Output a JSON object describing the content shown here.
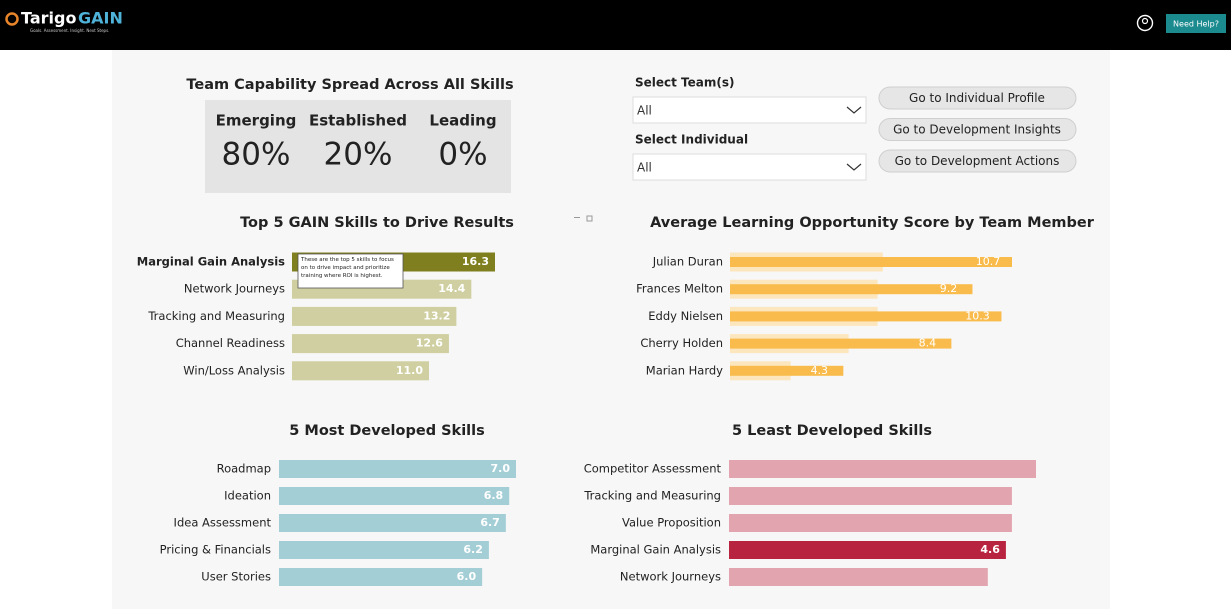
{
  "header": {
    "logo_brand": "Tarigo",
    "logo_product": "GAIN",
    "tagline": "Goals. Assessment. Insight. Next Steps.",
    "help_button": "Need Help?"
  },
  "capability": {
    "title": "Team Capability Spread Across All Skills",
    "levels": [
      {
        "label": "Emerging",
        "value": "80%"
      },
      {
        "label": "Established",
        "value": "20%"
      },
      {
        "label": "Leading",
        "value": "0%"
      }
    ]
  },
  "filters": [
    {
      "label": "Select Team(s)",
      "selected": "All"
    },
    {
      "label": "Select Individual",
      "selected": "All"
    }
  ],
  "buttons": [
    "Go to Individual Profile",
    "Go to Development Insights",
    "Go to Development Actions"
  ],
  "tooltip": "These are the top 5 skills to focus on to drive impact and prioritize training where ROI is highest.",
  "chart_data": [
    {
      "type": "bar",
      "title": "Top 5 GAIN Skills to Drive Results",
      "categories": [
        "Marginal Gain Analysis",
        "Network Journeys",
        "Tracking and Measuring",
        "Channel Readiness",
        "Win/Loss Analysis"
      ],
      "values": [
        16.3,
        14.4,
        13.2,
        12.6,
        11.0
      ],
      "value_labels": [
        "16.3",
        "14.4",
        "13.2",
        "12.6",
        "11.0"
      ],
      "colors": [
        "#7f7f1f",
        "#cfcfa1",
        "#cfcfa1",
        "#cfcfa1",
        "#cfcfa1"
      ]
    },
    {
      "type": "bar",
      "title": "Average Learning Opportunity Score by Team Member",
      "categories": [
        "Julian Duran",
        "Frances Melton",
        "Eddy Nielsen",
        "Cherry Holden",
        "Marian Hardy"
      ],
      "series": [
        {
          "color": "#fce6bd",
          "values": [
            5.8,
            5.6,
            5.6,
            4.5,
            2.3
          ]
        },
        {
          "color": "#f8bb4c",
          "values": [
            10.7,
            9.2,
            10.3,
            8.4,
            4.3
          ],
          "value_labels": [
            "10.7",
            "9.2",
            "10.3",
            "8.4",
            "4.3"
          ]
        }
      ]
    },
    {
      "type": "bar",
      "title": "5 Most Developed Skills",
      "categories": [
        "Roadmap",
        "Ideation",
        "Idea Assessment",
        "Pricing & Financials",
        "User Stories"
      ],
      "values": [
        7.0,
        6.8,
        6.7,
        6.2,
        6.0
      ],
      "value_labels": [
        "7.0",
        "6.8",
        "6.7",
        "6.2",
        "6.0"
      ],
      "colors": [
        "#a3ced6",
        "#a3ced6",
        "#a3ced6",
        "#a3ced6",
        "#a3ced6"
      ]
    },
    {
      "type": "bar",
      "title": "5 Least Developed Skills",
      "categories": [
        "Competitor Assessment",
        "Tracking and Measuring",
        "Value Proposition",
        "Marginal Gain Analysis",
        "Network Journeys"
      ],
      "values": [
        5.1,
        4.7,
        4.7,
        4.6,
        4.3
      ],
      "value_labels": [
        null,
        null,
        null,
        "4.6",
        null
      ],
      "colors": [
        "#e2a5b0",
        "#e2a5b0",
        "#e2a5b0",
        "#b8243f",
        "#e2a5b0"
      ]
    }
  ]
}
